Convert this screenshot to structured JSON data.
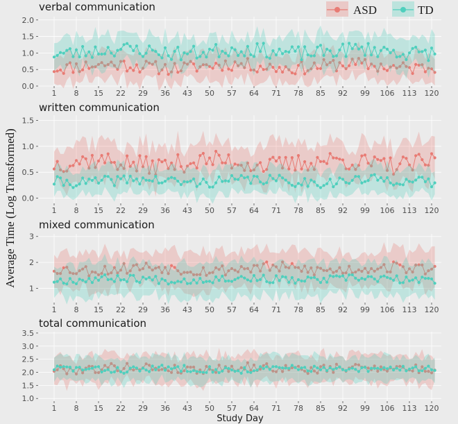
{
  "chart_data": {
    "type": "line",
    "ylabel": "Average Time (Log Transformed)",
    "xlabel": "Study Day",
    "x_ticks": [
      1,
      8,
      15,
      22,
      29,
      36,
      43,
      50,
      57,
      64,
      71,
      78,
      85,
      92,
      99,
      106,
      113,
      120
    ],
    "x_range": [
      1,
      121
    ],
    "legend": {
      "position": "top-right",
      "entries": [
        {
          "name": "ASD",
          "color": "#e87b74"
        },
        {
          "name": "TD",
          "color": "#4fcfbd"
        }
      ]
    },
    "panels": [
      {
        "title": "verbal communication",
        "ylim": [
          0,
          2.1
        ],
        "y_ticks": [
          0.0,
          0.5,
          1.0,
          1.5,
          2.0
        ],
        "y_tick_labels": [
          "0.0",
          "0.5",
          "1.0",
          "1.5",
          "2.0"
        ],
        "band": {
          "ASD": 0.4,
          "TD": 0.45
        },
        "series": [
          {
            "name": "ASD",
            "center": 0.6,
            "amp": 0.2,
            "seed": 11
          },
          {
            "name": "TD",
            "center": 1.05,
            "amp": 0.22,
            "seed": 23
          }
        ]
      },
      {
        "title": "written communication",
        "ylim": [
          -0.1,
          1.6
        ],
        "y_ticks": [
          0.0,
          0.5,
          1.0,
          1.5
        ],
        "y_tick_labels": [
          "0.0",
          "0.5",
          "1.0",
          "1.5"
        ],
        "band": {
          "ASD": 0.35,
          "TD": 0.25
        },
        "series": [
          {
            "name": "ASD",
            "center": 0.68,
            "amp": 0.18,
            "seed": 37
          },
          {
            "name": "TD",
            "center": 0.33,
            "amp": 0.1,
            "seed": 41
          }
        ]
      },
      {
        "title": "mixed communication",
        "ylim": [
          0.45,
          3.1
        ],
        "y_ticks": [
          1,
          2,
          3
        ],
        "y_tick_labels": [
          "1",
          "2",
          "3"
        ],
        "band": {
          "ASD": 0.65,
          "TD": 0.6
        },
        "series": [
          {
            "name": "ASD",
            "center": 1.75,
            "amp": 0.22,
            "seed": 53
          },
          {
            "name": "TD",
            "center": 1.35,
            "amp": 0.15,
            "seed": 67
          }
        ]
      },
      {
        "title": "total communication",
        "ylim": [
          0.9,
          3.55
        ],
        "y_ticks": [
          1.0,
          1.5,
          2.0,
          2.5,
          3.0,
          3.5
        ],
        "y_tick_labels": [
          "1.0",
          "1.5",
          "2.0",
          "2.5",
          "3.0",
          "3.5"
        ],
        "band": {
          "ASD": 0.5,
          "TD": 0.45
        },
        "series": [
          {
            "name": "ASD",
            "center": 2.15,
            "amp": 0.17,
            "seed": 79
          },
          {
            "name": "TD",
            "center": 2.12,
            "amp": 0.13,
            "seed": 83
          }
        ]
      }
    ]
  }
}
